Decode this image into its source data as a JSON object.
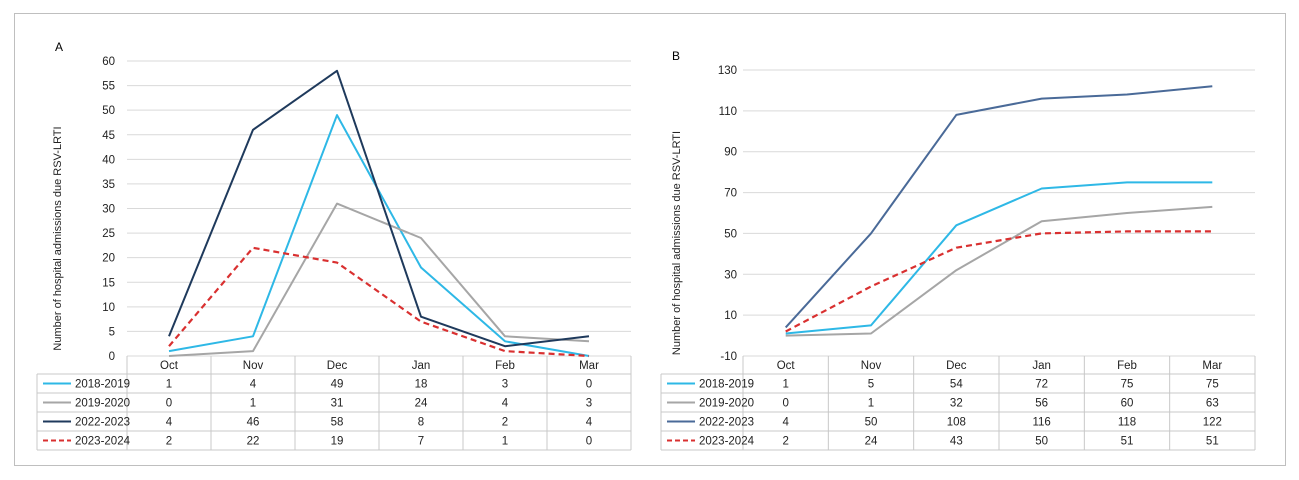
{
  "chart_data": [
    {
      "type": "line",
      "panel_label": "A",
      "ylabel": "Number of hospital admissions due RSV-LRTI",
      "categories": [
        "Oct",
        "Nov",
        "Dec",
        "Jan",
        "Feb",
        "Mar"
      ],
      "ylim": [
        0,
        60
      ],
      "yticks": [
        0,
        5,
        10,
        15,
        20,
        25,
        30,
        35,
        40,
        45,
        50,
        55,
        60
      ],
      "grid": true,
      "legend": "data-table-below",
      "series": [
        {
          "name": "2018-2019",
          "values": [
            1,
            4,
            49,
            18,
            3,
            0
          ],
          "color": "#2eb8e6",
          "dashed": false
        },
        {
          "name": "2019-2020",
          "values": [
            0,
            1,
            31,
            24,
            4,
            3
          ],
          "color": "#a6a6a6",
          "dashed": false
        },
        {
          "name": "2022-2023",
          "values": [
            4,
            46,
            58,
            8,
            2,
            4
          ],
          "color": "#1f3a5c",
          "dashed": false
        },
        {
          "name": "2023-2024",
          "values": [
            2,
            22,
            19,
            7,
            1,
            0
          ],
          "color": "#d93030",
          "dashed": true
        }
      ]
    },
    {
      "type": "line",
      "panel_label": "B",
      "ylabel": "Number of hospital admissions due RSV-LRTI",
      "categories": [
        "Oct",
        "Nov",
        "Dec",
        "Jan",
        "Feb",
        "Mar"
      ],
      "ylim": [
        -10,
        130
      ],
      "yticks": [
        -10,
        10,
        30,
        50,
        70,
        90,
        110,
        130
      ],
      "grid": true,
      "legend": "data-table-below",
      "series": [
        {
          "name": "2018-2019",
          "values": [
            1,
            5,
            54,
            72,
            75,
            75
          ],
          "color": "#2eb8e6",
          "dashed": false
        },
        {
          "name": "2019-2020",
          "values": [
            0,
            1,
            32,
            56,
            60,
            63
          ],
          "color": "#a6a6a6",
          "dashed": false
        },
        {
          "name": "2022-2023",
          "values": [
            4,
            50,
            108,
            116,
            118,
            122
          ],
          "color": "#4a6a98",
          "dashed": false
        },
        {
          "name": "2023-2024",
          "values": [
            2,
            24,
            43,
            50,
            51,
            51
          ],
          "color": "#d93030",
          "dashed": true
        }
      ]
    }
  ]
}
